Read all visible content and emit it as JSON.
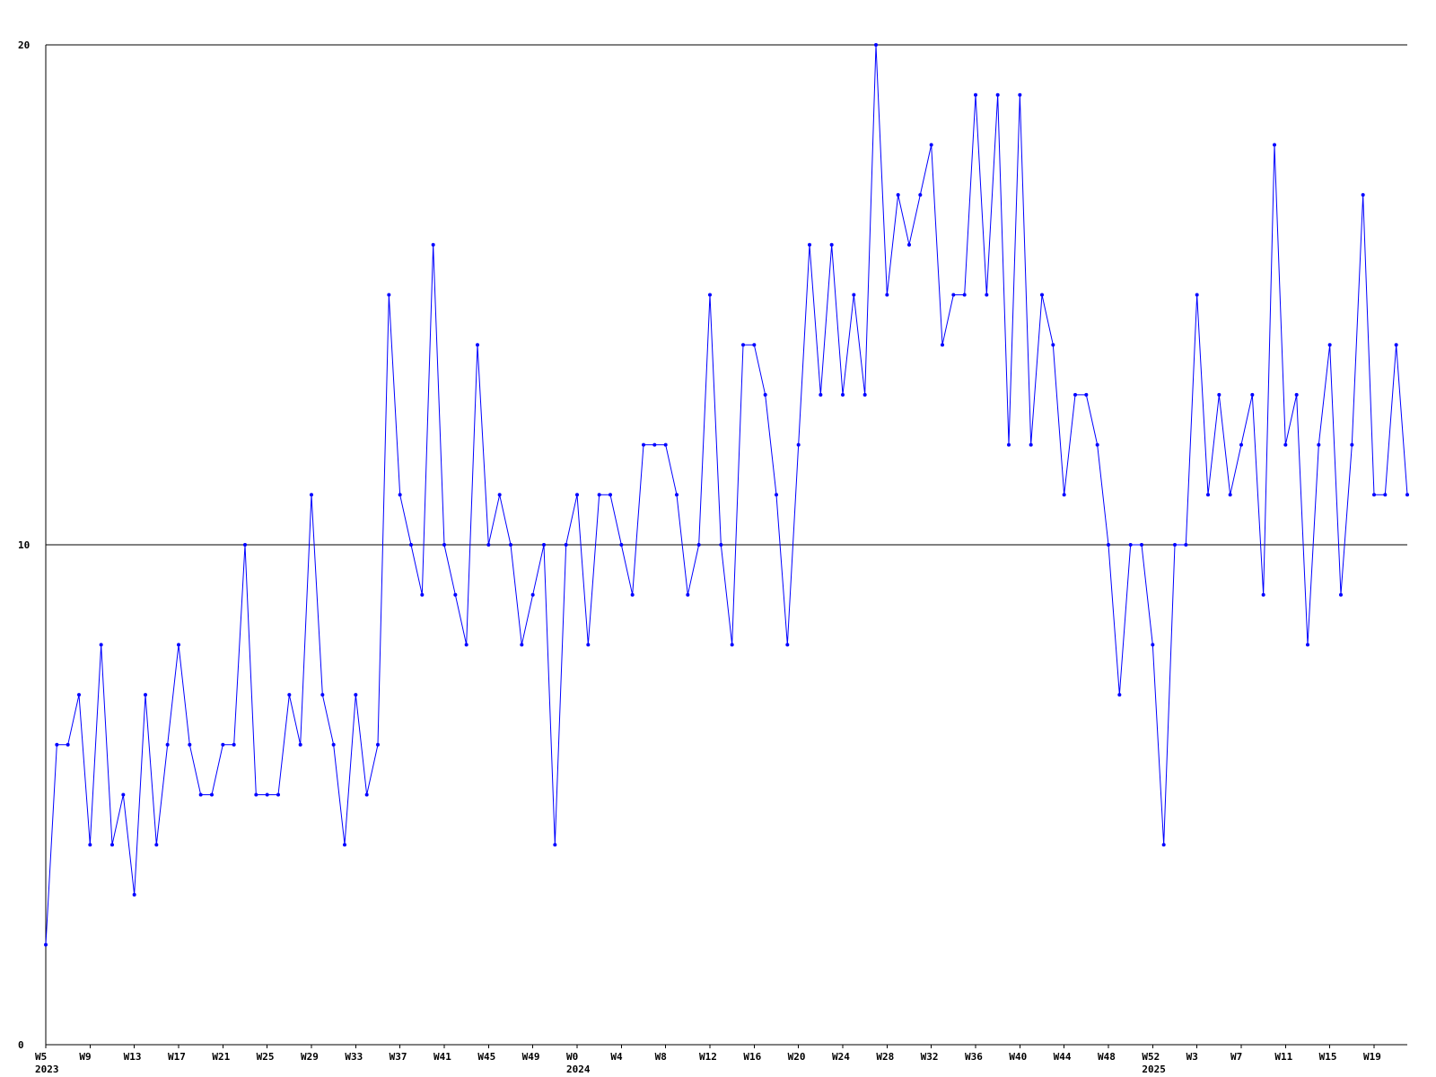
{
  "chart_data": {
    "type": "line",
    "title": "",
    "xlabel": "",
    "ylabel": "",
    "ylim": [
      0,
      20
    ],
    "y_ticks": [
      0,
      10,
      20
    ],
    "grid": {
      "horizontal": true,
      "vertical": false
    },
    "legend": "none",
    "series_color": "#0000ff",
    "axis_color": "#000000",
    "x_tick_labels": [
      "W5",
      "W9",
      "W13",
      "W17",
      "W21",
      "W25",
      "W29",
      "W33",
      "W37",
      "W41",
      "W45",
      "W49",
      "W0",
      "W4",
      "W8",
      "W12",
      "W16",
      "W20",
      "W24",
      "W28",
      "W32",
      "W36",
      "W40",
      "W44",
      "W48",
      "W52",
      "W3",
      "W7",
      "W11",
      "W15",
      "W19"
    ],
    "year_labels": [
      "2023",
      "2024",
      "2025"
    ],
    "series": [
      {
        "values": [
          2,
          6,
          6,
          7,
          4,
          8,
          4,
          5,
          3,
          7,
          4,
          6,
          8,
          6,
          5,
          5,
          6,
          6,
          10,
          5,
          5,
          5,
          7,
          6,
          11,
          7,
          6,
          4,
          7,
          5,
          6,
          15,
          11,
          10,
          9,
          16,
          10,
          9,
          8,
          14,
          10,
          11,
          10,
          8,
          9,
          10,
          4,
          10,
          11,
          8,
          11,
          11,
          10,
          9,
          12,
          12,
          12,
          11,
          9,
          10,
          15,
          10,
          8,
          14,
          14,
          13,
          11,
          8,
          12,
          16,
          13,
          16,
          13,
          15,
          13,
          20,
          15,
          17,
          16,
          17,
          18,
          14,
          15,
          15,
          19,
          15,
          19,
          12,
          19,
          12,
          15,
          14,
          11,
          13,
          13,
          12,
          10,
          7,
          10,
          10,
          8,
          4,
          10,
          10,
          15,
          11,
          13,
          11,
          12,
          13,
          9,
          18,
          12,
          13,
          8,
          12,
          14,
          9,
          12,
          17,
          11,
          11,
          14,
          11
        ]
      }
    ]
  }
}
